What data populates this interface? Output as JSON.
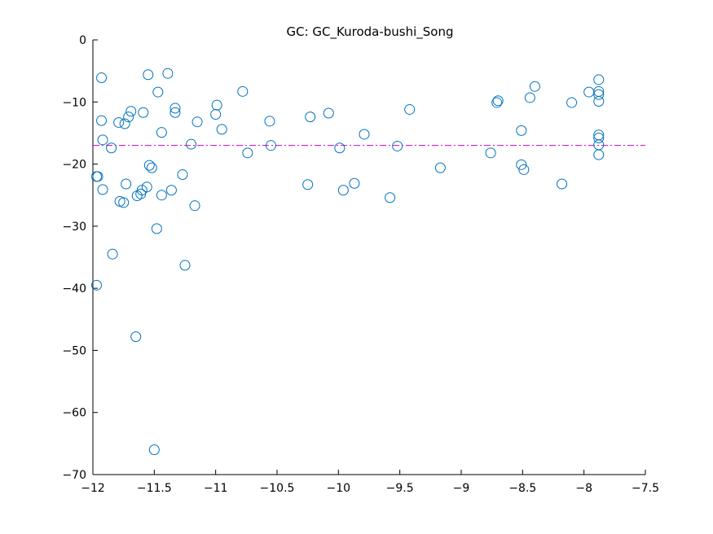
{
  "chart_data": {
    "type": "scatter",
    "title": "GC: GC_Kuroda-bushi_Song",
    "xlabel": "",
    "ylabel": "",
    "xlim": [
      -12,
      -7.5
    ],
    "ylim": [
      -70,
      0
    ],
    "xticks": [
      -12,
      -11.5,
      -11,
      -10.5,
      -10,
      -9.5,
      -9,
      -8.5,
      -8,
      -7.5
    ],
    "xtick_labels": [
      "-12",
      "-11.5",
      "-11",
      "-10.5",
      "-10",
      "-9.5",
      "-9",
      "-8.5",
      "-8",
      "-7.5"
    ],
    "yticks": [
      0,
      -10,
      -20,
      -30,
      -40,
      -50,
      -60,
      -70
    ],
    "ytick_labels": [
      "0",
      "-10",
      "-20",
      "-30",
      "-40",
      "-50",
      "-60",
      "-70"
    ],
    "grid": false,
    "marker_color": "#0072bd",
    "reference_line": {
      "y": -17,
      "color": "#cc00cc",
      "style": "dash-dot"
    },
    "points": [
      [
        -11.97,
        -39.5
      ],
      [
        -11.97,
        -22.0
      ],
      [
        -11.96,
        -22.0
      ],
      [
        -11.93,
        -6.1
      ],
      [
        -11.93,
        -13.0
      ],
      [
        -11.92,
        -24.1
      ],
      [
        -11.92,
        -16.1
      ],
      [
        -11.85,
        -17.4
      ],
      [
        -11.84,
        -34.5
      ],
      [
        -11.79,
        -13.3
      ],
      [
        -11.78,
        -26.0
      ],
      [
        -11.75,
        -26.2
      ],
      [
        -11.74,
        -13.5
      ],
      [
        -11.73,
        -23.2
      ],
      [
        -11.71,
        -12.4
      ],
      [
        -11.69,
        -11.5
      ],
      [
        -11.65,
        -47.8
      ],
      [
        -11.64,
        -25.1
      ],
      [
        -11.61,
        -24.8
      ],
      [
        -11.6,
        -24.2
      ],
      [
        -11.59,
        -11.7
      ],
      [
        -11.56,
        -23.7
      ],
      [
        -11.55,
        -5.6
      ],
      [
        -11.54,
        -20.2
      ],
      [
        -11.52,
        -20.6
      ],
      [
        -11.5,
        -66.0
      ],
      [
        -11.48,
        -30.4
      ],
      [
        -11.47,
        -8.4
      ],
      [
        -11.44,
        -25.0
      ],
      [
        -11.44,
        -14.9
      ],
      [
        -11.39,
        -5.4
      ],
      [
        -11.36,
        -24.2
      ],
      [
        -11.33,
        -11.0
      ],
      [
        -11.33,
        -11.7
      ],
      [
        -11.27,
        -21.7
      ],
      [
        -11.25,
        -36.3
      ],
      [
        -11.2,
        -16.8
      ],
      [
        -11.17,
        -26.7
      ],
      [
        -11.15,
        -13.2
      ],
      [
        -11.0,
        -12.0
      ],
      [
        -10.99,
        -10.5
      ],
      [
        -10.95,
        -14.4
      ],
      [
        -10.78,
        -8.3
      ],
      [
        -10.74,
        -18.2
      ],
      [
        -10.56,
        -13.1
      ],
      [
        -10.55,
        -17.0
      ],
      [
        -10.25,
        -23.3
      ],
      [
        -10.23,
        -12.4
      ],
      [
        -10.08,
        -11.8
      ],
      [
        -9.99,
        -17.4
      ],
      [
        -9.96,
        -24.2
      ],
      [
        -9.87,
        -23.1
      ],
      [
        -9.79,
        -15.2
      ],
      [
        -9.58,
        -25.4
      ],
      [
        -9.52,
        -17.1
      ],
      [
        -9.42,
        -11.2
      ],
      [
        -9.17,
        -20.6
      ],
      [
        -8.76,
        -18.2
      ],
      [
        -8.71,
        -10.1
      ],
      [
        -8.7,
        -9.8
      ],
      [
        -8.51,
        -14.6
      ],
      [
        -8.51,
        -20.1
      ],
      [
        -8.49,
        -20.9
      ],
      [
        -8.44,
        -9.3
      ],
      [
        -8.4,
        -7.5
      ],
      [
        -8.18,
        -23.2
      ],
      [
        -8.1,
        -10.1
      ],
      [
        -7.96,
        -8.4
      ],
      [
        -7.88,
        -6.4
      ],
      [
        -7.88,
        -8.3
      ],
      [
        -7.88,
        -8.8
      ],
      [
        -7.88,
        -9.9
      ],
      [
        -7.88,
        -15.3
      ],
      [
        -7.88,
        -15.8
      ],
      [
        -7.88,
        -16.9
      ],
      [
        -7.88,
        -18.5
      ]
    ]
  }
}
